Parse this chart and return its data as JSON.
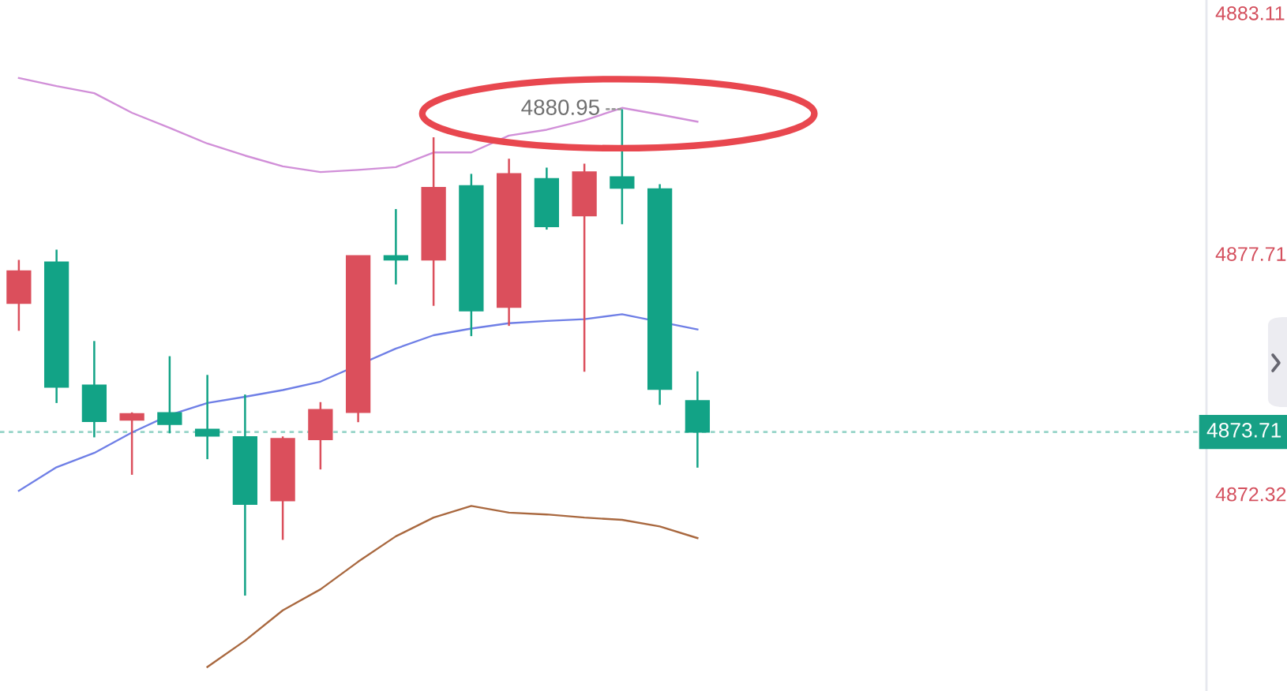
{
  "chart_data": {
    "type": "candlestick",
    "categories": [
      null,
      null,
      null,
      null,
      null,
      null,
      null,
      null,
      null,
      null,
      null,
      null,
      null,
      null,
      null,
      null,
      null,
      null,
      null,
      null,
      null,
      null,
      null,
      null,
      null,
      null,
      null,
      null,
      null,
      null,
      null,
      null
    ],
    "ohlc": [
      [
        4876.6,
        4877.57,
        4875.98,
        4877.32
      ],
      [
        4877.52,
        4877.8,
        4874.36,
        4874.72
      ],
      [
        4874.76,
        4875.75,
        4873.59,
        4873.95
      ],
      [
        4873.98,
        4874.15,
        4872.75,
        4874.12
      ],
      [
        4874.14,
        4875.41,
        4873.68,
        4873.88
      ],
      [
        4873.77,
        4874.99,
        4873.1,
        4873.62
      ],
      [
        4873.6,
        4874.55,
        4870.04,
        4872.09
      ],
      [
        4872.17,
        4873.61,
        4871.29,
        4873.56
      ],
      [
        4873.54,
        4874.38,
        4872.87,
        4874.21
      ],
      [
        4874.15,
        4877.66,
        4873.93,
        4877.66
      ],
      [
        4877.66,
        4878.71,
        4877.02,
        4877.57
      ],
      [
        4877.57,
        4880.32,
        4876.54,
        4879.19
      ],
      [
        4879.23,
        4879.5,
        4875.86,
        4876.43
      ],
      [
        4876.51,
        4879.84,
        4876.09,
        4879.5
      ],
      [
        4879.39,
        4879.64,
        4878.25,
        4878.32
      ],
      [
        4878.56,
        4879.73,
        4875.06,
        4879.54
      ],
      [
        4879.43,
        4880.95,
        4878.37,
        4879.18
      ],
      [
        4879.16,
        4879.27,
        4874.32,
        4874.67
      ],
      [
        4874.41,
        4875.07,
        4872.91,
        4873.71
      ],
      null,
      null,
      null,
      null,
      null,
      null,
      null,
      null,
      null,
      null,
      null,
      null,
      null
    ],
    "colors": [
      "#db4f5c",
      "#12a386",
      "#12a386",
      "#db4f5c",
      "#12a386",
      "#12a386",
      "#12a386",
      "#db4f5c",
      "#db4f5c",
      "#db4f5c",
      "#12a386",
      "#db4f5c",
      "#12a386",
      "#db4f5c",
      "#12a386",
      "#db4f5c",
      "#12a386",
      "#12a386",
      "#12a386",
      null,
      null,
      null,
      null,
      null,
      null,
      null,
      null,
      null,
      null,
      null,
      null,
      null
    ],
    "series": [
      {
        "type": "line",
        "color": "#d18fd8",
        "values": [
          4881.65,
          4881.47,
          4881.31,
          4880.87,
          4880.53,
          4880.18,
          4879.91,
          4879.67,
          4879.54,
          4879.59,
          4879.65,
          4879.98,
          4879.98,
          4880.36,
          4880.49,
          4880.7,
          4880.98,
          4880.83,
          4880.67,
          null,
          null,
          null,
          null,
          null,
          null,
          null,
          null,
          null,
          null,
          null,
          null,
          null
        ]
      },
      {
        "type": "line",
        "color": "#6f7fe6",
        "values": [
          4872.39,
          4872.92,
          4873.24,
          4873.7,
          4874.09,
          4874.36,
          4874.5,
          4874.65,
          4874.84,
          null,
          4875.58,
          4875.88,
          4876.03,
          4876.15,
          4876.2,
          4876.24,
          4876.35,
          null,
          4876.01,
          null,
          null,
          null,
          null,
          null,
          null,
          null,
          null,
          null,
          null,
          null,
          null,
          null
        ]
      },
      {
        "type": "line",
        "color": "#a9683f",
        "values": [
          null,
          null,
          null,
          null,
          null,
          4868.44,
          4869.03,
          4869.71,
          4870.18,
          4870.8,
          4871.37,
          4871.79,
          4872.05,
          4871.9,
          4871.86,
          4871.79,
          4871.74,
          4871.59,
          4871.33,
          null,
          null,
          null,
          null,
          null,
          null,
          null,
          null,
          null,
          null,
          null,
          null,
          null
        ]
      }
    ],
    "ylim": [
      4867.9,
      4883.4
    ],
    "yticks": [
      4872.32,
      4877.71,
      4883.11
    ],
    "tick_labels": "y",
    "ref_lines": [
      {
        "axis": "y",
        "value": 4873.71,
        "label": "4873.71",
        "color": "#17a085",
        "line_style": "dashed"
      }
    ],
    "annotations": [
      "4880.95"
    ]
  }
}
